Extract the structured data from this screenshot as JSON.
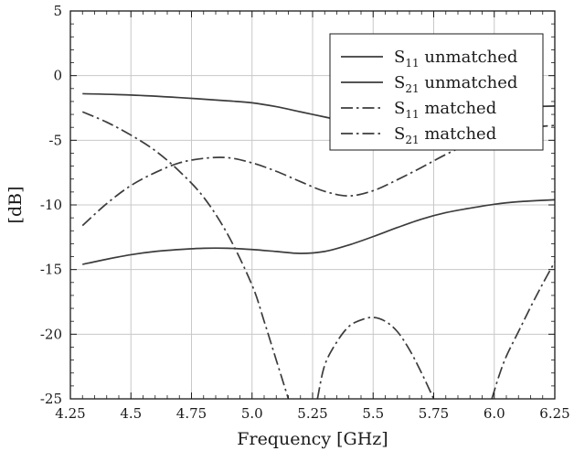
{
  "chart_data": {
    "type": "line",
    "xlabel": "Frequency [GHz]",
    "ylabel": "[dB]",
    "xlim": [
      4.25,
      6.25
    ],
    "ylim": [
      -25,
      5
    ],
    "xticks": [
      4.25,
      4.5,
      4.75,
      5.0,
      5.25,
      5.5,
      5.75,
      6.0,
      6.25
    ],
    "xtick_labels": [
      "4.25",
      "4.5",
      "4.75",
      "5.0",
      "5.25",
      "5.5",
      "5.75",
      "6.0",
      "6.25"
    ],
    "yticks": [
      5,
      0,
      -5,
      -10,
      -15,
      -20,
      -25
    ],
    "ytick_labels": [
      "5",
      "0",
      "-5",
      "-10",
      "-15",
      "-20",
      "-25"
    ],
    "grid": true,
    "legend_position": "top-right",
    "series": [
      {
        "name": "S11 unmatched",
        "label_main": "S",
        "label_sub": "11",
        "label_rest": " unmatched",
        "style": "solid",
        "x": [
          4.3,
          4.5,
          4.7,
          4.9,
          5.0,
          5.1,
          5.2,
          5.3,
          5.4,
          5.5,
          5.6,
          5.7,
          5.8,
          5.9,
          6.0,
          6.1,
          6.25
        ],
        "y": [
          -1.4,
          -1.5,
          -1.7,
          -1.95,
          -2.1,
          -2.4,
          -2.8,
          -3.2,
          -3.6,
          -3.95,
          -4.1,
          -3.8,
          -3.3,
          -2.9,
          -2.6,
          -2.45,
          -2.35
        ]
      },
      {
        "name": "S21 unmatched",
        "label_main": "S",
        "label_sub": "21",
        "label_rest": " unmatched",
        "style": "solid",
        "x": [
          4.3,
          4.4,
          4.5,
          4.6,
          4.7,
          4.8,
          4.9,
          5.0,
          5.1,
          5.2,
          5.3,
          5.4,
          5.5,
          5.6,
          5.7,
          5.8,
          5.9,
          6.0,
          6.1,
          6.25
        ],
        "y": [
          -14.6,
          -14.2,
          -13.85,
          -13.6,
          -13.45,
          -13.35,
          -13.35,
          -13.45,
          -13.6,
          -13.75,
          -13.6,
          -13.1,
          -12.45,
          -11.75,
          -11.1,
          -10.6,
          -10.25,
          -9.95,
          -9.75,
          -9.6
        ]
      },
      {
        "name": "S11 matched",
        "label_main": "S",
        "label_sub": "11",
        "label_rest": " matched",
        "style": "dashdot",
        "x": [
          4.3,
          4.4,
          4.5,
          4.6,
          4.7,
          4.8,
          4.9,
          5.0,
          5.1,
          5.2,
          5.3,
          5.4,
          5.5,
          5.6,
          5.7,
          5.8,
          5.9,
          6.0,
          6.1,
          6.25
        ],
        "y": [
          -11.6,
          -9.9,
          -8.5,
          -7.5,
          -6.75,
          -6.4,
          -6.35,
          -6.75,
          -7.4,
          -8.2,
          -8.95,
          -9.3,
          -8.9,
          -8.05,
          -7.1,
          -6.1,
          -5.25,
          -4.6,
          -4.1,
          -3.85
        ]
      },
      {
        "name": "S21 matched",
        "label_main": "S",
        "label_sub": "21",
        "label_rest": " matched",
        "style": "dashdot",
        "segments": [
          {
            "x": [
              4.3,
              4.4,
              4.5,
              4.6,
              4.7,
              4.8,
              4.9,
              5.0,
              5.05,
              5.1,
              5.15
            ],
            "y": [
              -2.8,
              -3.6,
              -4.6,
              -5.8,
              -7.4,
              -9.4,
              -12.3,
              -16.2,
              -19.0,
              -22.0,
              -25.0
            ]
          },
          {
            "x": [
              5.27,
              5.3,
              5.35,
              5.4,
              5.45,
              5.5,
              5.55,
              5.6,
              5.65,
              5.7,
              5.75
            ],
            "y": [
              -25.0,
              -22.4,
              -20.6,
              -19.4,
              -18.9,
              -18.7,
              -19.0,
              -19.8,
              -21.2,
              -23.0,
              -25.0
            ]
          },
          {
            "x": [
              5.99,
              6.02,
              6.05,
              6.1,
              6.15,
              6.2,
              6.25
            ],
            "y": [
              -25.0,
              -23.2,
              -21.7,
              -19.8,
              -17.9,
              -16.1,
              -14.4
            ]
          }
        ]
      }
    ]
  }
}
